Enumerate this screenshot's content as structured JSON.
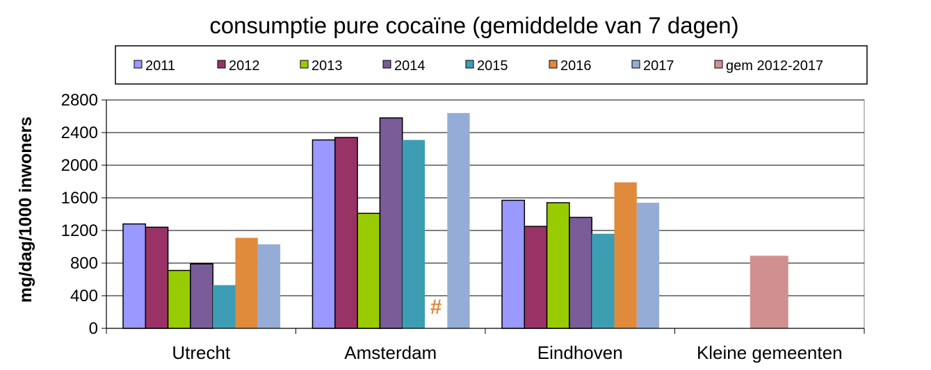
{
  "chart_data": {
    "type": "bar",
    "title": "consumptie pure cocaïne (gemiddelde van 7 dagen)",
    "xlabel": "",
    "ylabel": "mg/dag/1000 inwoners",
    "ylim": [
      0,
      2800
    ],
    "yticks": [
      "0",
      "400",
      "800",
      "1200",
      "1600",
      "2000",
      "2400",
      "2800"
    ],
    "ytick_values": [
      0,
      400,
      800,
      1200,
      1600,
      2000,
      2400,
      2800
    ],
    "grid": true,
    "legend_position": "top",
    "categories": [
      "Utrecht",
      "Amsterdam",
      "Eindhoven",
      "Kleine gemeenten"
    ],
    "series": [
      {
        "name": "2011",
        "color": "#9999ff",
        "values": [
          1280,
          2310,
          1570,
          null
        ]
      },
      {
        "name": "2012",
        "color": "#993366",
        "values": [
          1240,
          2340,
          1250,
          null
        ]
      },
      {
        "name": "2013",
        "color": "#99cc00",
        "values": [
          710,
          1410,
          1540,
          null
        ]
      },
      {
        "name": "2014",
        "color": "#7a5c99",
        "values": [
          790,
          2580,
          1360,
          null
        ]
      },
      {
        "name": "2015",
        "color": "#3d9eb3",
        "values": [
          530,
          2310,
          1160,
          null
        ]
      },
      {
        "name": "2016",
        "color": "#e08a3c",
        "values": [
          1110,
          null,
          1790,
          null
        ]
      },
      {
        "name": "2017",
        "color": "#95add6",
        "values": [
          1030,
          2640,
          1540,
          null
        ]
      },
      {
        "name": "gem 2012-2017",
        "color": "#d09090",
        "values": [
          null,
          null,
          null,
          890
        ]
      }
    ],
    "annotations": [
      {
        "text": "#",
        "category": "Amsterdam",
        "series": "2016",
        "color": "#e08a3c"
      }
    ]
  }
}
